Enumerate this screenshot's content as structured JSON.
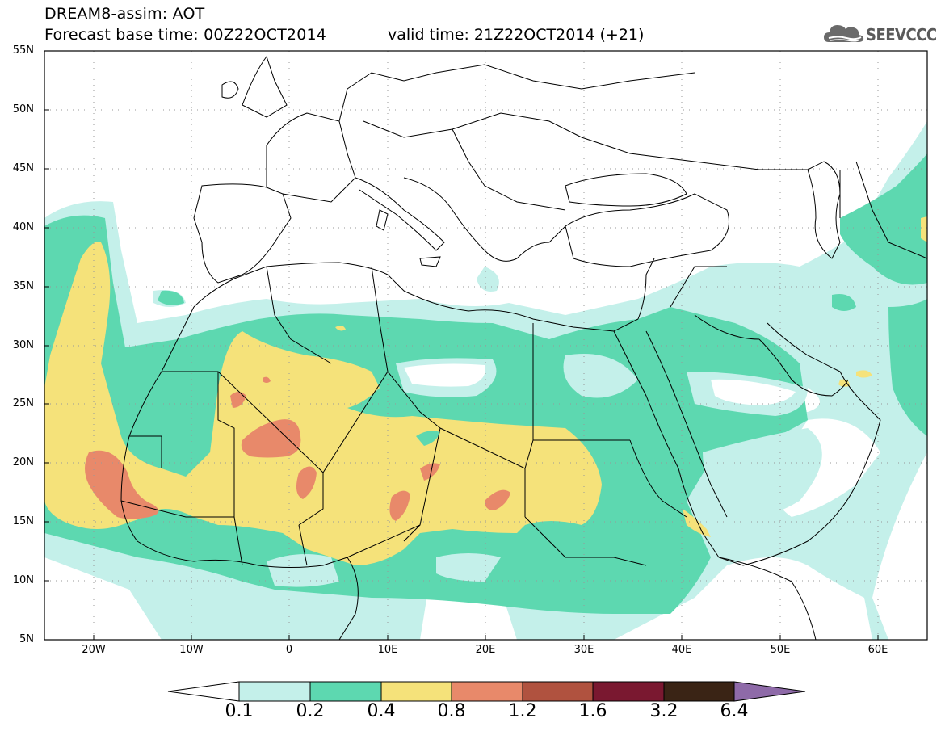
{
  "title": {
    "line1": "DREAM8-assim: AOT",
    "line2": "Forecast base time: 00Z22OCT2014",
    "valid": "valid time: 21Z22OCT2014 (+21)"
  },
  "logo": {
    "text": "SEEVCCC",
    "icon": "cloud-icon"
  },
  "axes": {
    "lat_labels": [
      "55N",
      "50N",
      "45N",
      "40N",
      "35N",
      "30N",
      "25N",
      "20N",
      "15N",
      "10N",
      "5N"
    ],
    "lon_labels": [
      "20W",
      "10W",
      "0",
      "10E",
      "20E",
      "30E",
      "40E",
      "50E",
      "60E"
    ],
    "lon_range": [
      -25,
      65
    ],
    "lat_range": [
      5,
      55
    ],
    "grid": true
  },
  "colorbar": {
    "levels": [
      "0.1",
      "0.2",
      "0.4",
      "0.8",
      "1.2",
      "1.6",
      "3.2",
      "6.4"
    ],
    "colors": [
      "#c4f0ea",
      "#5dd8b0",
      "#f5e27a",
      "#e8896a",
      "#b0523f",
      "#7a1830",
      "#3a2415",
      "#8e6aa8"
    ],
    "under_color": "#ffffff",
    "over_color": "#8e6aa8"
  },
  "field": {
    "variable": "AOT",
    "model": "DREAM8-assim",
    "palette": {
      "c1": "#c4f0ea",
      "c2": "#5dd8b0",
      "c3": "#f5e27a",
      "c4": "#e8896a"
    }
  }
}
